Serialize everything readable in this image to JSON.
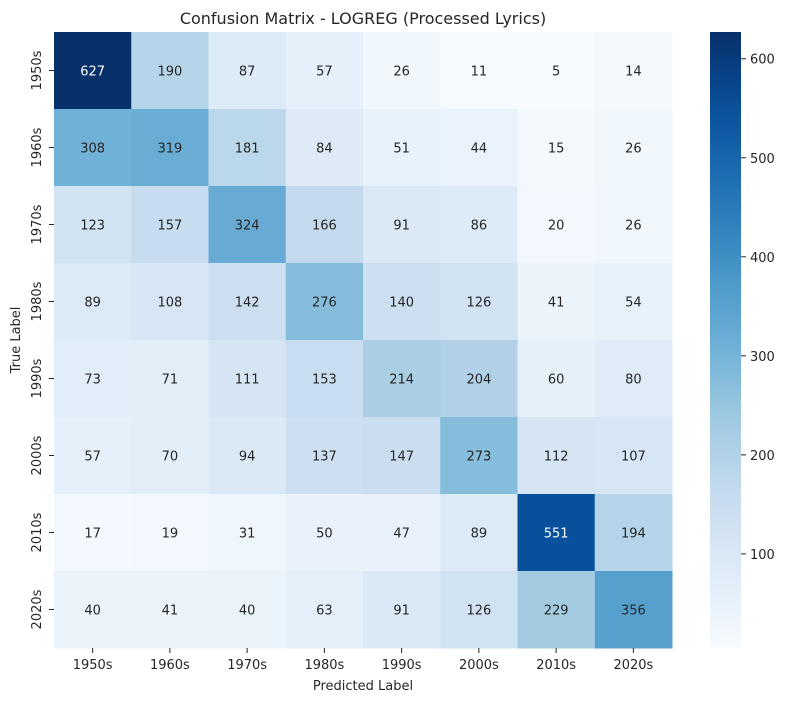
{
  "chart_data": {
    "type": "heatmap",
    "title": "Confusion Matrix - LOGREG (Processed Lyrics)",
    "xlabel": "Predicted Label",
    "ylabel": "True Label",
    "x_categories": [
      "1950s",
      "1960s",
      "1970s",
      "1980s",
      "1990s",
      "2000s",
      "2010s",
      "2020s"
    ],
    "y_categories": [
      "1950s",
      "1960s",
      "1970s",
      "1980s",
      "1990s",
      "2000s",
      "2010s",
      "2020s"
    ],
    "values": [
      [
        627,
        190,
        87,
        57,
        26,
        11,
        5,
        14
      ],
      [
        308,
        319,
        181,
        84,
        51,
        44,
        15,
        26
      ],
      [
        123,
        157,
        324,
        166,
        91,
        86,
        20,
        26
      ],
      [
        89,
        108,
        142,
        276,
        140,
        126,
        41,
        54
      ],
      [
        73,
        71,
        111,
        153,
        214,
        204,
        60,
        80
      ],
      [
        57,
        70,
        94,
        137,
        147,
        273,
        112,
        107
      ],
      [
        17,
        19,
        31,
        50,
        47,
        89,
        551,
        194
      ],
      [
        40,
        41,
        40,
        63,
        91,
        126,
        229,
        356
      ]
    ],
    "colormap": "Blues",
    "vmin": 5,
    "vmax": 627,
    "colorbar_ticks": [
      100,
      200,
      300,
      400,
      500,
      600
    ]
  }
}
